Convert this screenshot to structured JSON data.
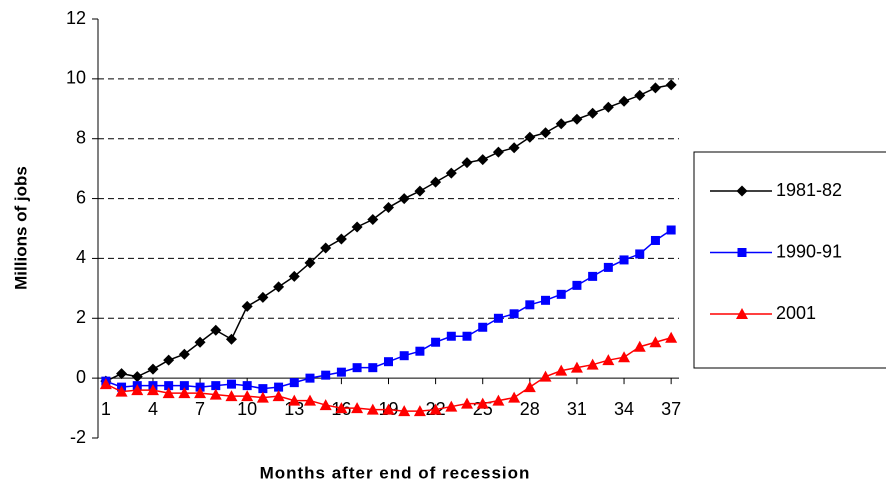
{
  "chart_data": {
    "type": "line",
    "y_label": "Millions of jobs",
    "x_label": "Months after end of recession",
    "x": [
      1,
      2,
      3,
      4,
      5,
      6,
      7,
      8,
      9,
      10,
      11,
      12,
      13,
      14,
      15,
      16,
      17,
      18,
      19,
      20,
      21,
      22,
      23,
      24,
      25,
      26,
      27,
      28,
      29,
      30,
      31,
      32,
      33,
      34,
      35,
      36,
      37
    ],
    "xlim": [
      0.5,
      37.5
    ],
    "xticks": [
      1,
      4,
      7,
      10,
      13,
      16,
      19,
      22,
      25,
      28,
      31,
      34,
      37
    ],
    "ylim": [
      -2,
      12
    ],
    "yticks": [
      -2,
      0,
      2,
      4,
      6,
      8,
      10,
      12
    ],
    "grid": true,
    "legend": "right",
    "series": [
      {
        "name": "1981-82",
        "color": "#000000",
        "marker": "diamond",
        "values": [
          -0.1,
          0.15,
          0.05,
          0.3,
          0.6,
          0.8,
          1.2,
          1.6,
          1.3,
          2.4,
          2.7,
          3.05,
          3.4,
          3.85,
          4.35,
          4.65,
          5.05,
          5.3,
          5.7,
          6.0,
          6.25,
          6.55,
          6.85,
          7.2,
          7.3,
          7.55,
          7.7,
          8.05,
          8.2,
          8.5,
          8.65,
          8.85,
          9.05,
          9.25,
          9.45,
          9.7,
          9.8
        ]
      },
      {
        "name": "1990-91",
        "color": "#0000ff",
        "marker": "square",
        "values": [
          -0.1,
          -0.3,
          -0.25,
          -0.25,
          -0.25,
          -0.25,
          -0.3,
          -0.25,
          -0.2,
          -0.25,
          -0.35,
          -0.3,
          -0.15,
          0.0,
          0.1,
          0.2,
          0.35,
          0.35,
          0.55,
          0.75,
          0.9,
          1.2,
          1.4,
          1.4,
          1.7,
          2.0,
          2.15,
          2.45,
          2.6,
          2.8,
          3.1,
          3.4,
          3.7,
          3.95,
          4.15,
          4.6,
          4.95
        ]
      },
      {
        "name": "2001",
        "color": "#ff0000",
        "marker": "triangle",
        "values": [
          -0.2,
          -0.45,
          -0.4,
          -0.4,
          -0.5,
          -0.5,
          -0.5,
          -0.55,
          -0.6,
          -0.6,
          -0.65,
          -0.6,
          -0.75,
          -0.75,
          -0.9,
          -1.0,
          -1.0,
          -1.05,
          -1.05,
          -1.1,
          -1.1,
          -1.05,
          -0.95,
          -0.85,
          -0.85,
          -0.75,
          -0.65,
          -0.3,
          0.05,
          0.25,
          0.35,
          0.45,
          0.6,
          0.7,
          1.05,
          1.2,
          1.35
        ]
      }
    ]
  }
}
